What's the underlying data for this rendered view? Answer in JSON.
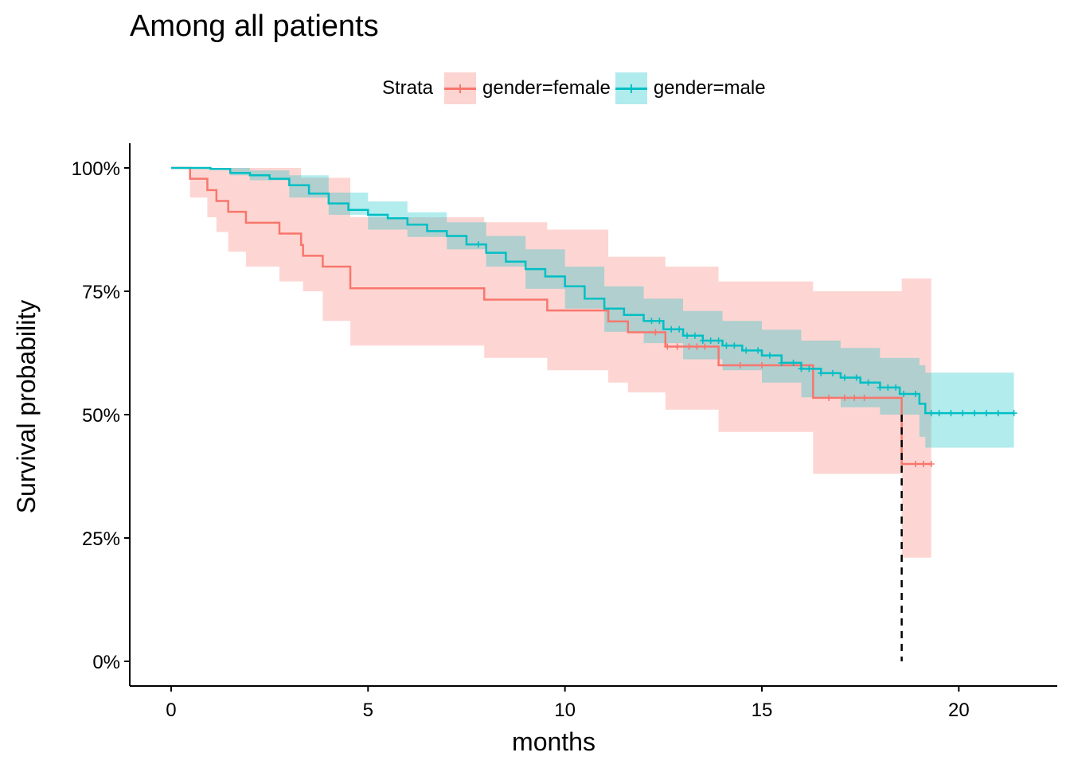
{
  "chart_data": {
    "type": "line",
    "title": "Among all patients",
    "xlabel": "months",
    "ylabel": "Survival probability",
    "xlim": [
      -1.05,
      22.5
    ],
    "ylim": [
      -0.05,
      1.05
    ],
    "x_ticks": [
      0,
      5,
      10,
      15,
      20
    ],
    "x_tick_labels": [
      "0",
      "5",
      "10",
      "15",
      "20"
    ],
    "y_ticks": [
      0,
      0.25,
      0.5,
      0.75,
      1
    ],
    "y_tick_labels": [
      "0%",
      "25%",
      "50%",
      "75%",
      "100%"
    ],
    "grid": false,
    "legend": {
      "title": "Strata",
      "position": "top"
    },
    "median_line": {
      "x": 18.55,
      "y": 0.5
    },
    "series": [
      {
        "name": "gender=female",
        "color": "#F8766D",
        "fill": "#F8766D",
        "steps": [
          [
            0,
            1.0
          ],
          [
            0.48,
            0.978
          ],
          [
            0.92,
            0.955
          ],
          [
            1.15,
            0.933
          ],
          [
            1.45,
            0.911
          ],
          [
            1.9,
            0.889
          ],
          [
            2.75,
            0.867
          ],
          [
            3.3,
            0.844
          ],
          [
            3.35,
            0.822
          ],
          [
            3.85,
            0.8
          ],
          [
            4.55,
            0.756
          ],
          [
            7.95,
            0.733
          ],
          [
            9.55,
            0.711
          ],
          [
            11.1,
            0.689
          ],
          [
            11.6,
            0.667
          ],
          [
            12.55,
            0.638
          ],
          [
            13.9,
            0.6
          ],
          [
            16.3,
            0.534
          ],
          [
            18.55,
            0.4
          ],
          [
            19.3,
            0.4
          ]
        ],
        "upper": [
          [
            0,
            1.0
          ],
          [
            0.48,
            1.0
          ],
          [
            3.3,
            0.98
          ],
          [
            4.55,
            0.9
          ],
          [
            7.95,
            0.89
          ],
          [
            9.55,
            0.875
          ],
          [
            11.1,
            0.82
          ],
          [
            12.55,
            0.8
          ],
          [
            13.9,
            0.77
          ],
          [
            16.3,
            0.75
          ],
          [
            18.55,
            0.776
          ],
          [
            19.3,
            0.776
          ]
        ],
        "lower": [
          [
            0,
            1.0
          ],
          [
            0.48,
            0.94
          ],
          [
            0.92,
            0.9
          ],
          [
            1.15,
            0.87
          ],
          [
            1.45,
            0.83
          ],
          [
            1.9,
            0.8
          ],
          [
            2.75,
            0.77
          ],
          [
            3.35,
            0.75
          ],
          [
            3.85,
            0.69
          ],
          [
            4.55,
            0.64
          ],
          [
            7.95,
            0.615
          ],
          [
            9.55,
            0.59
          ],
          [
            11.1,
            0.565
          ],
          [
            11.6,
            0.545
          ],
          [
            12.55,
            0.51
          ],
          [
            13.9,
            0.465
          ],
          [
            16.3,
            0.38
          ],
          [
            18.55,
            0.21
          ],
          [
            19.3,
            0.21
          ]
        ],
        "censor_x": [
          12.3,
          12.6,
          12.85,
          13.15,
          13.35,
          13.55,
          14.45,
          15.0,
          16.7,
          17.1,
          17.35,
          17.6,
          18.9,
          19.1,
          19.3
        ]
      },
      {
        "name": "gender=male",
        "color": "#00BFC4",
        "fill": "#00BFC4",
        "steps": [
          [
            0,
            1.0
          ],
          [
            1.0,
            0.998
          ],
          [
            1.5,
            0.99
          ],
          [
            2.0,
            0.985
          ],
          [
            2.5,
            0.978
          ],
          [
            3.0,
            0.965
          ],
          [
            3.5,
            0.948
          ],
          [
            4.0,
            0.928
          ],
          [
            4.5,
            0.915
          ],
          [
            5.0,
            0.905
          ],
          [
            5.5,
            0.898
          ],
          [
            6.0,
            0.885
          ],
          [
            6.5,
            0.872
          ],
          [
            7.0,
            0.862
          ],
          [
            7.5,
            0.845
          ],
          [
            8.0,
            0.828
          ],
          [
            8.5,
            0.81
          ],
          [
            9.0,
            0.795
          ],
          [
            9.5,
            0.78
          ],
          [
            10.0,
            0.76
          ],
          [
            10.5,
            0.735
          ],
          [
            11.0,
            0.715
          ],
          [
            11.5,
            0.702
          ],
          [
            12.0,
            0.69
          ],
          [
            12.5,
            0.673
          ],
          [
            13.0,
            0.66
          ],
          [
            13.5,
            0.65
          ],
          [
            14.0,
            0.64
          ],
          [
            14.5,
            0.63
          ],
          [
            15.0,
            0.62
          ],
          [
            15.5,
            0.605
          ],
          [
            16.0,
            0.593
          ],
          [
            16.5,
            0.584
          ],
          [
            17.0,
            0.575
          ],
          [
            17.5,
            0.565
          ],
          [
            18.0,
            0.555
          ],
          [
            18.5,
            0.542
          ],
          [
            19.0,
            0.522
          ],
          [
            19.15,
            0.503
          ],
          [
            21.4,
            0.503
          ]
        ],
        "upper": [
          [
            0,
            1.0
          ],
          [
            1.5,
            1.0
          ],
          [
            2.0,
            0.995
          ],
          [
            3.0,
            0.985
          ],
          [
            4.0,
            0.95
          ],
          [
            5.0,
            0.932
          ],
          [
            6.0,
            0.91
          ],
          [
            7.0,
            0.89
          ],
          [
            8.0,
            0.862
          ],
          [
            9.0,
            0.835
          ],
          [
            10.0,
            0.8
          ],
          [
            11.0,
            0.76
          ],
          [
            12.0,
            0.735
          ],
          [
            13.0,
            0.71
          ],
          [
            14.0,
            0.69
          ],
          [
            15.0,
            0.672
          ],
          [
            16.0,
            0.65
          ],
          [
            17.0,
            0.635
          ],
          [
            18.0,
            0.615
          ],
          [
            19.0,
            0.6
          ],
          [
            19.15,
            0.585
          ],
          [
            21.4,
            0.585
          ]
        ],
        "lower": [
          [
            0,
            1.0
          ],
          [
            1.5,
            0.985
          ],
          [
            2.0,
            0.975
          ],
          [
            3.0,
            0.94
          ],
          [
            4.0,
            0.905
          ],
          [
            5.0,
            0.875
          ],
          [
            6.0,
            0.86
          ],
          [
            7.0,
            0.835
          ],
          [
            8.0,
            0.8
          ],
          [
            9.0,
            0.755
          ],
          [
            10.0,
            0.715
          ],
          [
            11.0,
            0.668
          ],
          [
            12.0,
            0.645
          ],
          [
            13.0,
            0.612
          ],
          [
            14.0,
            0.59
          ],
          [
            15.0,
            0.565
          ],
          [
            16.0,
            0.535
          ],
          [
            17.0,
            0.515
          ],
          [
            18.0,
            0.5
          ],
          [
            19.0,
            0.455
          ],
          [
            19.15,
            0.433
          ],
          [
            21.4,
            0.433
          ]
        ],
        "censor_x": [
          7.8,
          12.2,
          12.4,
          12.7,
          12.9,
          13.1,
          13.3,
          13.5,
          13.7,
          13.9,
          14.1,
          14.3,
          14.6,
          14.9,
          15.2,
          15.5,
          15.8,
          16.0,
          16.2,
          16.5,
          16.8,
          17.1,
          17.4,
          17.7,
          18.0,
          18.2,
          18.4,
          18.6,
          18.9,
          19.3,
          19.5,
          19.8,
          20.1,
          20.4,
          20.7,
          21.0,
          21.4
        ]
      }
    ]
  }
}
